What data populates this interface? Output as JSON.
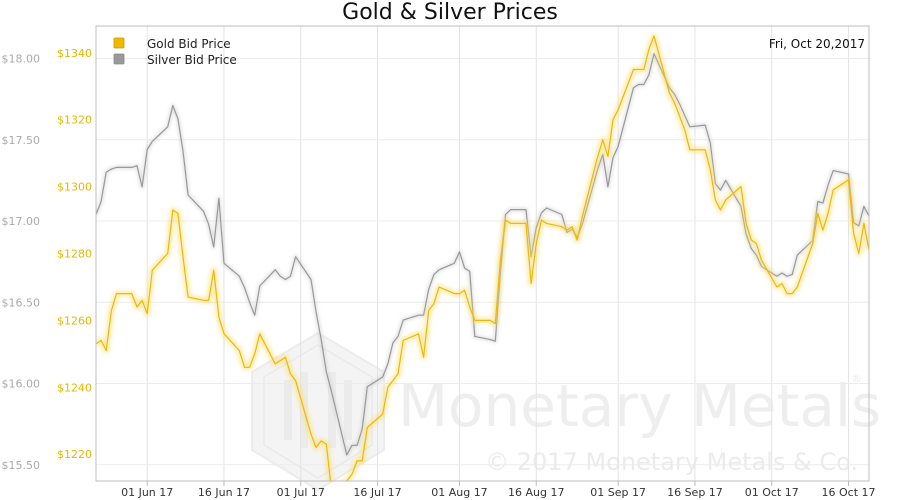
{
  "chart_data": {
    "type": "line",
    "title": "Gold & Silver Prices",
    "date_label": "Fri, Oct 20,2017",
    "x_ticks": [
      "01 Jun 17",
      "16 Jun 17",
      "01 Jul 17",
      "16 Jul 17",
      "01 Aug 17",
      "16 Aug 17",
      "01 Sep 17",
      "16 Sep 17",
      "01 Oct 17",
      "16 Oct 17"
    ],
    "x_start": "2017-05-22",
    "x_end": "2017-10-20",
    "legend": {
      "position": "top-left"
    },
    "watermark": {
      "brand": "Monetary Metals",
      "registered": "®",
      "copyright": "© 2017 Monetary Metals & Co."
    },
    "axes": {
      "left": {
        "label": "",
        "range": [
          15.4,
          18.2
        ],
        "ticks": [
          "$15.50",
          "$16.00",
          "$16.50",
          "$17.00",
          "$17.50",
          "$18.00"
        ],
        "tick_values": [
          15.5,
          16.0,
          16.5,
          17.0,
          17.5,
          18.0
        ],
        "color": "#aaaaaa"
      },
      "right": {
        "label": "",
        "range": [
          1212,
          1348
        ],
        "ticks": [
          "$1220",
          "$1240",
          "$1260",
          "$1280",
          "$1300",
          "$1320",
          "$1340"
        ],
        "tick_values": [
          1220,
          1240,
          1260,
          1280,
          1300,
          1320,
          1340
        ],
        "color": "#e6b800"
      }
    },
    "series": [
      {
        "name": "Gold Bid Price",
        "color": "#f0b800",
        "axis": "right",
        "points": [
          [
            "2017-05-22",
            1253
          ],
          [
            "2017-05-23",
            1254
          ],
          [
            "2017-05-24",
            1251
          ],
          [
            "2017-05-25",
            1263
          ],
          [
            "2017-05-26",
            1268
          ],
          [
            "2017-05-29",
            1268
          ],
          [
            "2017-05-30",
            1264
          ],
          [
            "2017-05-31",
            1266
          ],
          [
            "2017-06-01",
            1262
          ],
          [
            "2017-06-02",
            1275
          ],
          [
            "2017-06-05",
            1280
          ],
          [
            "2017-06-06",
            1293
          ],
          [
            "2017-06-07",
            1292
          ],
          [
            "2017-06-08",
            1279
          ],
          [
            "2017-06-09",
            1267
          ],
          [
            "2017-06-12",
            1266
          ],
          [
            "2017-06-13",
            1266
          ],
          [
            "2017-06-14",
            1275
          ],
          [
            "2017-06-15",
            1261
          ],
          [
            "2017-06-16",
            1256
          ],
          [
            "2017-06-19",
            1251
          ],
          [
            "2017-06-20",
            1246
          ],
          [
            "2017-06-21",
            1246
          ],
          [
            "2017-06-22",
            1250
          ],
          [
            "2017-06-23",
            1256
          ],
          [
            "2017-06-26",
            1247
          ],
          [
            "2017-06-27",
            1248
          ],
          [
            "2017-06-28",
            1249
          ],
          [
            "2017-06-29",
            1244
          ],
          [
            "2017-06-30",
            1242
          ],
          [
            "2017-07-03",
            1226
          ],
          [
            "2017-07-04",
            1222
          ],
          [
            "2017-07-05",
            1224
          ],
          [
            "2017-07-06",
            1223
          ],
          [
            "2017-07-07",
            1209
          ],
          [
            "2017-07-10",
            1212
          ],
          [
            "2017-07-11",
            1214
          ],
          [
            "2017-07-12",
            1218
          ],
          [
            "2017-07-13",
            1218
          ],
          [
            "2017-07-14",
            1228
          ],
          [
            "2017-07-17",
            1232
          ],
          [
            "2017-07-18",
            1240
          ],
          [
            "2017-07-19",
            1242
          ],
          [
            "2017-07-20",
            1244
          ],
          [
            "2017-07-21",
            1254
          ],
          [
            "2017-07-24",
            1256
          ],
          [
            "2017-07-25",
            1249
          ],
          [
            "2017-07-26",
            1263
          ],
          [
            "2017-07-27",
            1265
          ],
          [
            "2017-07-28",
            1270
          ],
          [
            "2017-07-31",
            1268
          ],
          [
            "2017-08-01",
            1268
          ],
          [
            "2017-08-02",
            1269
          ],
          [
            "2017-08-03",
            1264
          ],
          [
            "2017-08-04",
            1260
          ],
          [
            "2017-08-07",
            1260
          ],
          [
            "2017-08-08",
            1259
          ],
          [
            "2017-08-09",
            1278
          ],
          [
            "2017-08-10",
            1290
          ],
          [
            "2017-08-11",
            1289
          ],
          [
            "2017-08-14",
            1289
          ],
          [
            "2017-08-15",
            1271
          ],
          [
            "2017-08-16",
            1283
          ],
          [
            "2017-08-17",
            1290
          ],
          [
            "2017-08-18",
            1289
          ],
          [
            "2017-08-21",
            1288
          ],
          [
            "2017-08-22",
            1287
          ],
          [
            "2017-08-23",
            1288
          ],
          [
            "2017-08-24",
            1284
          ],
          [
            "2017-08-25",
            1291
          ],
          [
            "2017-08-28",
            1309
          ],
          [
            "2017-08-29",
            1314
          ],
          [
            "2017-08-30",
            1309
          ],
          [
            "2017-08-31",
            1320
          ],
          [
            "2017-09-01",
            1323
          ],
          [
            "2017-09-04",
            1335
          ],
          [
            "2017-09-05",
            1335
          ],
          [
            "2017-09-06",
            1335
          ],
          [
            "2017-09-07",
            1341
          ],
          [
            "2017-09-08",
            1345
          ],
          [
            "2017-09-11",
            1328
          ],
          [
            "2017-09-12",
            1325
          ],
          [
            "2017-09-13",
            1321
          ],
          [
            "2017-09-14",
            1317
          ],
          [
            "2017-09-15",
            1311
          ],
          [
            "2017-09-18",
            1311
          ],
          [
            "2017-09-19",
            1305
          ],
          [
            "2017-09-20",
            1296
          ],
          [
            "2017-09-21",
            1293
          ],
          [
            "2017-09-22",
            1296
          ],
          [
            "2017-09-25",
            1300
          ],
          [
            "2017-09-26",
            1289
          ],
          [
            "2017-09-27",
            1284
          ],
          [
            "2017-09-28",
            1283
          ],
          [
            "2017-09-29",
            1278
          ],
          [
            "2017-10-02",
            1270
          ],
          [
            "2017-10-03",
            1271
          ],
          [
            "2017-10-04",
            1268
          ],
          [
            "2017-10-05",
            1268
          ],
          [
            "2017-10-06",
            1270
          ],
          [
            "2017-10-09",
            1283
          ],
          [
            "2017-10-10",
            1292
          ],
          [
            "2017-10-11",
            1287
          ],
          [
            "2017-10-12",
            1292
          ],
          [
            "2017-10-13",
            1299
          ],
          [
            "2017-10-16",
            1302
          ],
          [
            "2017-10-17",
            1286
          ],
          [
            "2017-10-18",
            1280
          ],
          [
            "2017-10-19",
            1289
          ],
          [
            "2017-10-20",
            1281
          ]
        ]
      },
      {
        "name": "Silver Bid Price",
        "color": "#999999",
        "axis": "left",
        "points": [
          [
            "2017-05-22",
            17.04
          ],
          [
            "2017-05-23",
            17.12
          ],
          [
            "2017-05-24",
            17.3
          ],
          [
            "2017-05-25",
            17.32
          ],
          [
            "2017-05-26",
            17.33
          ],
          [
            "2017-05-29",
            17.33
          ],
          [
            "2017-05-30",
            17.34
          ],
          [
            "2017-05-31",
            17.21
          ],
          [
            "2017-06-01",
            17.44
          ],
          [
            "2017-06-02",
            17.49
          ],
          [
            "2017-06-05",
            17.58
          ],
          [
            "2017-06-06",
            17.71
          ],
          [
            "2017-06-07",
            17.63
          ],
          [
            "2017-06-08",
            17.43
          ],
          [
            "2017-06-09",
            17.16
          ],
          [
            "2017-06-12",
            17.06
          ],
          [
            "2017-06-13",
            16.98
          ],
          [
            "2017-06-14",
            16.84
          ],
          [
            "2017-06-15",
            17.14
          ],
          [
            "2017-06-16",
            16.74
          ],
          [
            "2017-06-19",
            16.66
          ],
          [
            "2017-06-20",
            16.59
          ],
          [
            "2017-06-21",
            16.5
          ],
          [
            "2017-06-22",
            16.42
          ],
          [
            "2017-06-23",
            16.6
          ],
          [
            "2017-06-26",
            16.7
          ],
          [
            "2017-06-27",
            16.66
          ],
          [
            "2017-06-28",
            16.64
          ],
          [
            "2017-06-29",
            16.66
          ],
          [
            "2017-06-30",
            16.78
          ],
          [
            "2017-07-03",
            16.64
          ],
          [
            "2017-07-04",
            16.44
          ],
          [
            "2017-07-05",
            16.27
          ],
          [
            "2017-07-06",
            16.07
          ],
          [
            "2017-07-07",
            15.95
          ],
          [
            "2017-07-10",
            15.56
          ],
          [
            "2017-07-11",
            15.62
          ],
          [
            "2017-07-12",
            15.62
          ],
          [
            "2017-07-13",
            15.72
          ],
          [
            "2017-07-14",
            15.98
          ],
          [
            "2017-07-17",
            16.04
          ],
          [
            "2017-07-18",
            16.12
          ],
          [
            "2017-07-19",
            16.25
          ],
          [
            "2017-07-20",
            16.29
          ],
          [
            "2017-07-21",
            16.39
          ],
          [
            "2017-07-24",
            16.42
          ],
          [
            "2017-07-25",
            16.42
          ],
          [
            "2017-07-26",
            16.58
          ],
          [
            "2017-07-27",
            16.67
          ],
          [
            "2017-07-28",
            16.7
          ],
          [
            "2017-07-31",
            16.74
          ],
          [
            "2017-08-01",
            16.81
          ],
          [
            "2017-08-02",
            16.71
          ],
          [
            "2017-08-03",
            16.69
          ],
          [
            "2017-08-04",
            16.29
          ],
          [
            "2017-08-07",
            16.27
          ],
          [
            "2017-08-08",
            16.26
          ],
          [
            "2017-08-09",
            16.68
          ],
          [
            "2017-08-10",
            17.04
          ],
          [
            "2017-08-11",
            17.07
          ],
          [
            "2017-08-14",
            17.07
          ],
          [
            "2017-08-15",
            16.78
          ],
          [
            "2017-08-16",
            16.96
          ],
          [
            "2017-08-17",
            17.05
          ],
          [
            "2017-08-18",
            17.08
          ],
          [
            "2017-08-21",
            17.04
          ],
          [
            "2017-08-22",
            16.93
          ],
          [
            "2017-08-23",
            16.95
          ],
          [
            "2017-08-24",
            16.9
          ],
          [
            "2017-08-25",
            16.98
          ],
          [
            "2017-08-28",
            17.32
          ],
          [
            "2017-08-29",
            17.41
          ],
          [
            "2017-08-30",
            17.21
          ],
          [
            "2017-08-31",
            17.39
          ],
          [
            "2017-09-01",
            17.46
          ],
          [
            "2017-09-04",
            17.82
          ],
          [
            "2017-09-05",
            17.84
          ],
          [
            "2017-09-06",
            17.84
          ],
          [
            "2017-09-07",
            17.9
          ],
          [
            "2017-09-08",
            18.03
          ],
          [
            "2017-09-11",
            17.82
          ],
          [
            "2017-09-12",
            17.78
          ],
          [
            "2017-09-13",
            17.72
          ],
          [
            "2017-09-14",
            17.65
          ],
          [
            "2017-09-15",
            17.58
          ],
          [
            "2017-09-18",
            17.59
          ],
          [
            "2017-09-19",
            17.48
          ],
          [
            "2017-09-20",
            17.23
          ],
          [
            "2017-09-21",
            17.19
          ],
          [
            "2017-09-22",
            17.25
          ],
          [
            "2017-09-25",
            17.09
          ],
          [
            "2017-09-26",
            16.92
          ],
          [
            "2017-09-27",
            16.83
          ],
          [
            "2017-09-28",
            16.79
          ],
          [
            "2017-09-29",
            16.72
          ],
          [
            "2017-10-02",
            16.66
          ],
          [
            "2017-10-03",
            16.68
          ],
          [
            "2017-10-04",
            16.66
          ],
          [
            "2017-10-05",
            16.67
          ],
          [
            "2017-10-06",
            16.79
          ],
          [
            "2017-10-09",
            16.88
          ],
          [
            "2017-10-10",
            17.12
          ],
          [
            "2017-10-11",
            17.11
          ],
          [
            "2017-10-12",
            17.22
          ],
          [
            "2017-10-13",
            17.31
          ],
          [
            "2017-10-16",
            17.29
          ],
          [
            "2017-10-17",
            16.99
          ],
          [
            "2017-10-18",
            16.97
          ],
          [
            "2017-10-19",
            17.09
          ],
          [
            "2017-10-20",
            17.03
          ]
        ]
      }
    ]
  }
}
